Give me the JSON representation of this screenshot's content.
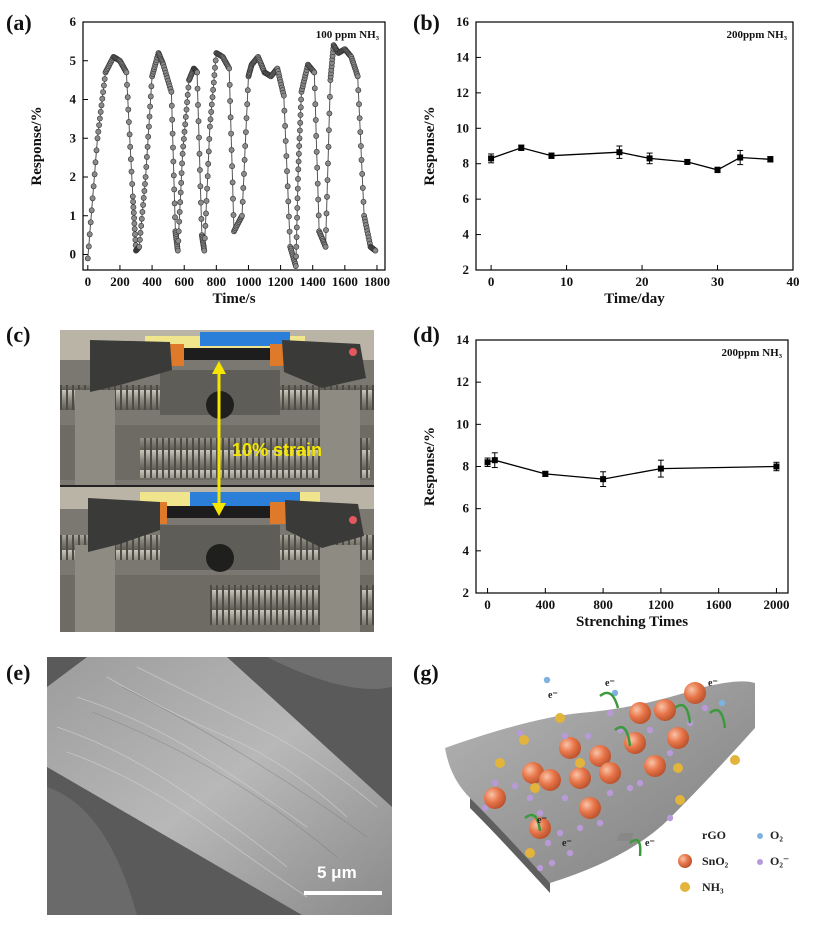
{
  "labels": {
    "a": "(a)",
    "b": "(b)",
    "c": "(c)",
    "d": "(d)",
    "e": "(e)",
    "g": "(g)"
  },
  "chart_data": [
    {
      "id": "a",
      "type": "line",
      "title": "100 ppm NH₃",
      "xlabel": "Time/s",
      "ylabel": "Response/%",
      "xlim": [
        -30,
        1850
      ],
      "ylim": [
        -0.4,
        6
      ],
      "xticks": [
        "0",
        "200",
        "400",
        "600",
        "800",
        "1000",
        "1200",
        "1400",
        "1600",
        "1800"
      ],
      "yticks": [
        "0",
        "1",
        "2",
        "3",
        "4",
        "5",
        "6"
      ],
      "series": [
        {
          "name": "response",
          "x": [
            0,
            60,
            110,
            160,
            200,
            240,
            280,
            300,
            320,
            360,
            400,
            440,
            470,
            520,
            545,
            560,
            590,
            630,
            660,
            680,
            710,
            725,
            760,
            800,
            840,
            880,
            910,
            960,
            1000,
            1020,
            1060,
            1100,
            1140,
            1180,
            1220,
            1260,
            1295,
            1310,
            1330,
            1370,
            1410,
            1440,
            1480,
            1510,
            1530,
            1560,
            1600,
            1640,
            1680,
            1720,
            1760,
            1790
          ],
          "y": [
            -0.1,
            3.0,
            4.7,
            5.1,
            5.0,
            4.7,
            1.5,
            0.1,
            0.2,
            2.0,
            4.6,
            5.2,
            4.9,
            4.2,
            0.6,
            0.1,
            2.6,
            4.5,
            4.8,
            4.7,
            0.5,
            0.1,
            3.3,
            5.2,
            5.1,
            4.8,
            0.6,
            1.0,
            4.6,
            4.9,
            5.1,
            4.7,
            4.6,
            4.8,
            4.1,
            0.2,
            -0.3,
            2.2,
            4.2,
            4.9,
            4.7,
            0.6,
            0.2,
            4.5,
            5.4,
            5.2,
            5.3,
            5.1,
            4.6,
            1.0,
            0.2,
            0.1
          ]
        }
      ]
    },
    {
      "id": "b",
      "type": "line",
      "title": "200ppm NH₃",
      "xlabel": "Time/day",
      "ylabel": "Response/%",
      "xlim": [
        -2,
        40
      ],
      "ylim": [
        2,
        16
      ],
      "xticks": [
        "0",
        "10",
        "20",
        "30",
        "40"
      ],
      "yticks": [
        "2",
        "4",
        "6",
        "8",
        "10",
        "12",
        "14",
        "16"
      ],
      "series": [
        {
          "name": "response",
          "x": [
            0,
            4,
            8,
            17,
            21,
            26,
            30,
            33,
            37
          ],
          "y": [
            8.3,
            8.9,
            8.45,
            8.65,
            8.3,
            8.1,
            7.65,
            8.35,
            8.25
          ],
          "err": [
            0.25,
            0.15,
            0.15,
            0.35,
            0.3,
            0.12,
            0.15,
            0.4,
            0.15
          ]
        }
      ]
    },
    {
      "id": "d",
      "type": "line",
      "title": "200ppm NH₃",
      "xlabel": "Strenching Times",
      "ylabel": "Response/%",
      "xlim": [
        -80,
        2080
      ],
      "ylim": [
        2,
        14
      ],
      "xticks": [
        "0",
        "400",
        "800",
        "1200",
        "1600",
        "2000"
      ],
      "yticks": [
        "2",
        "4",
        "6",
        "8",
        "10",
        "12",
        "14"
      ],
      "series": [
        {
          "name": "response",
          "x": [
            0,
            50,
            400,
            800,
            1200,
            2000
          ],
          "y": [
            8.2,
            8.3,
            7.65,
            7.4,
            7.9,
            8.0
          ],
          "err": [
            0.2,
            0.35,
            0.12,
            0.35,
            0.4,
            0.2
          ]
        }
      ]
    }
  ],
  "photo_c": {
    "strain_text": "10% strain"
  },
  "photo_e": {
    "scale_text": "5 μm"
  },
  "panel_g": {
    "electron": "e⁻",
    "legend": {
      "rgo": "rGO",
      "o2": "O₂",
      "sno2": "SnO₂",
      "o2minus": "O₂⁻",
      "nh3": "NH₃"
    },
    "colors": {
      "sheet": "#9a9a9a",
      "sno2": "#e8764a",
      "o2": "#7fb2e0",
      "o2minus": "#b89ad8",
      "nh3": "#e3b43c",
      "arrow": "#3c9a3c"
    }
  }
}
